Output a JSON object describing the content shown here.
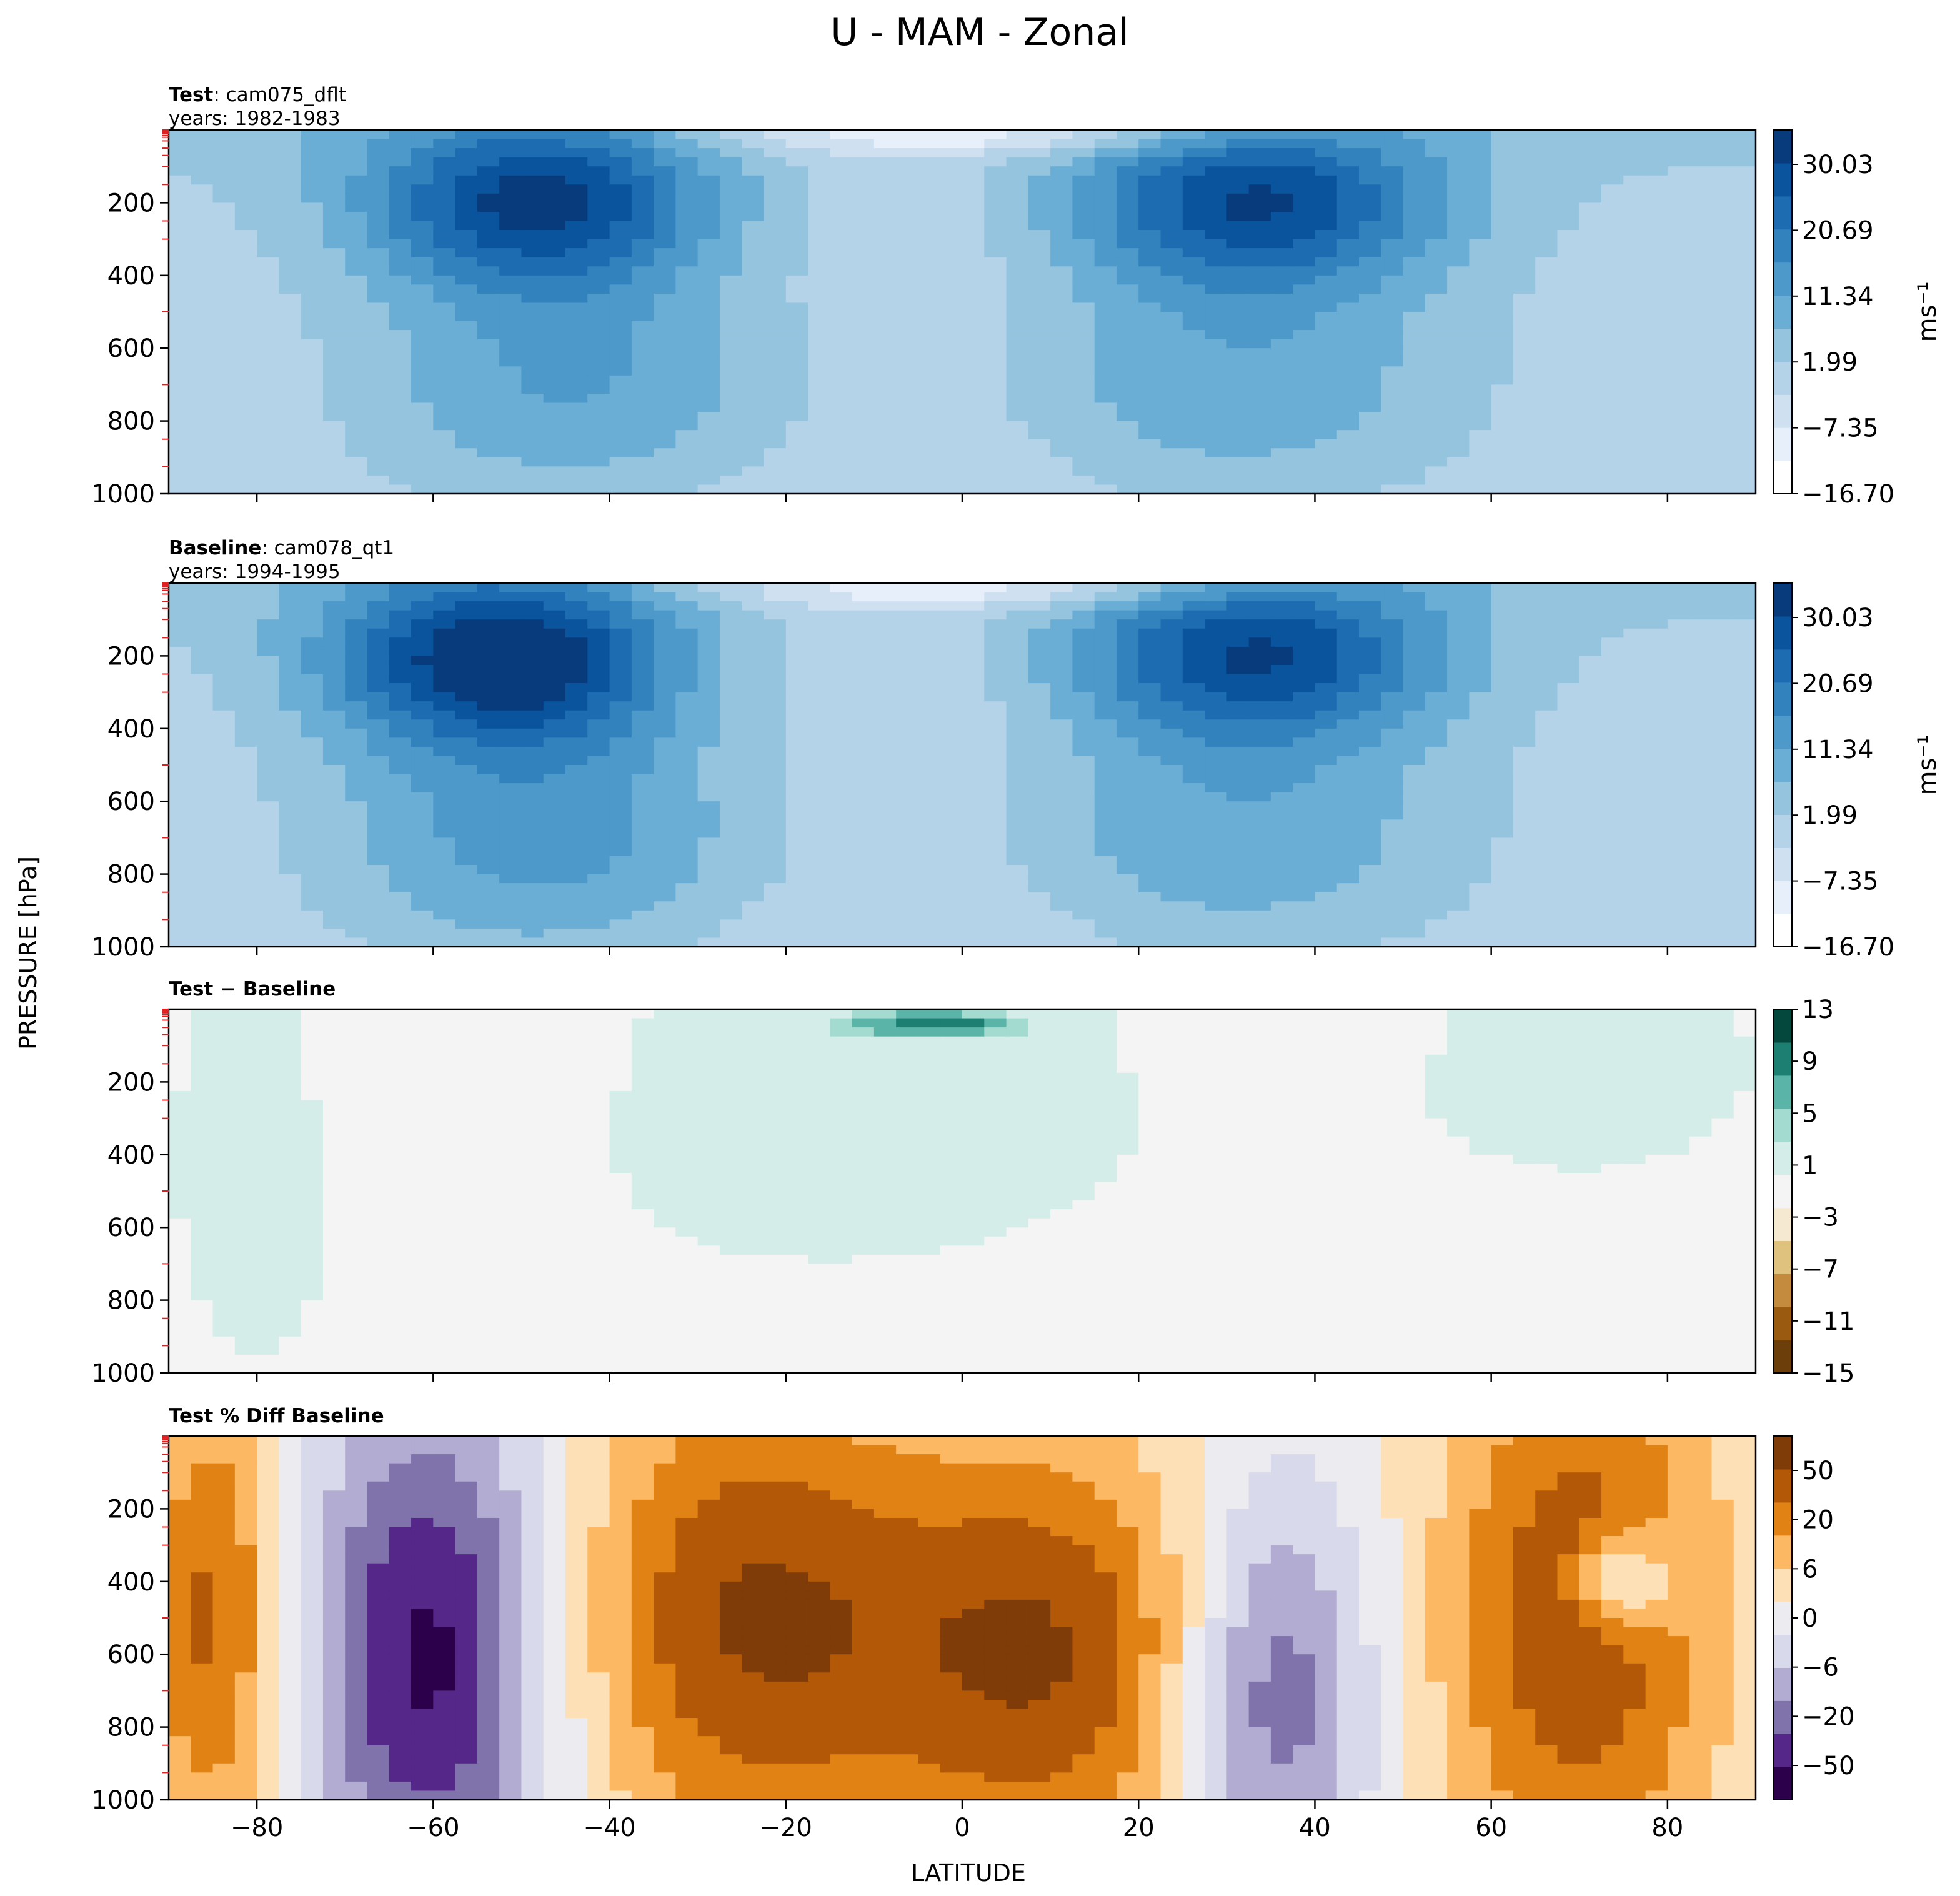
{
  "figure": {
    "title": "U - MAM - Zonal",
    "ylabel": "PRESSURE [hPa]",
    "xlabel": "LATITUDE"
  },
  "chart_data": [
    {
      "type": "heatmap",
      "panel": "test",
      "title_bold": "Test",
      "title_rest": ": cam075_dflt",
      "subtitle": "years: 1982-1983",
      "xlim": [
        -90,
        90
      ],
      "ylim": [
        1000,
        0
      ],
      "x_ticks": [
        -80,
        -60,
        -40,
        -20,
        0,
        20,
        40,
        60,
        80
      ],
      "y_ticks": [
        200,
        400,
        600,
        800,
        1000
      ],
      "colorbar": {
        "label": "ms⁻¹",
        "ticks": [
          "30.03",
          "20.69",
          "11.34",
          "1.99",
          "−7.35",
          "−16.70"
        ],
        "range": [
          -16.7,
          35.0
        ],
        "colors": [
          "#ffffff",
          "#e7f0fa",
          "#cfe0f1",
          "#b4d3e8",
          "#95c4df",
          "#6aaed6",
          "#4c99ca",
          "#3282be",
          "#1d6cb1",
          "#0a549e",
          "#083b7c"
        ]
      },
      "jets": [
        {
          "hemisphere": "south",
          "lat": -48,
          "pressure": 200,
          "speed": 31
        },
        {
          "hemisphere": "north",
          "lat": 33,
          "pressure": 200,
          "speed": 30
        }
      ]
    },
    {
      "type": "heatmap",
      "panel": "baseline",
      "title_bold": "Baseline",
      "title_rest": ": cam078_qt1",
      "subtitle": "years: 1994-1995",
      "xlim": [
        -90,
        90
      ],
      "ylim": [
        1000,
        0
      ],
      "x_ticks": [
        -80,
        -60,
        -40,
        -20,
        0,
        20,
        40,
        60,
        80
      ],
      "y_ticks": [
        200,
        400,
        600,
        800,
        1000
      ],
      "colorbar": {
        "label": "ms⁻¹",
        "ticks": [
          "30.03",
          "20.69",
          "11.34",
          "1.99",
          "−7.35",
          "−16.70"
        ],
        "range": [
          -16.7,
          35.0
        ],
        "colors": [
          "#ffffff",
          "#e7f0fa",
          "#cfe0f1",
          "#b4d3e8",
          "#95c4df",
          "#6aaed6",
          "#4c99ca",
          "#3282be",
          "#1d6cb1",
          "#0a549e",
          "#083b7c"
        ]
      },
      "jets": [
        {
          "hemisphere": "south",
          "lat": -52,
          "pressure": 210,
          "speed": 35
        },
        {
          "hemisphere": "north",
          "lat": 33,
          "pressure": 200,
          "speed": 30
        }
      ]
    },
    {
      "type": "heatmap",
      "panel": "diff",
      "title_bold": "Test − Baseline",
      "xlim": [
        -90,
        90
      ],
      "ylim": [
        1000,
        0
      ],
      "x_ticks": [
        -80,
        -60,
        -40,
        -20,
        0,
        20,
        40,
        60,
        80
      ],
      "y_ticks": [
        200,
        400,
        600,
        800,
        1000
      ],
      "colorbar": {
        "label": "",
        "ticks": [
          "13",
          "9",
          "5",
          "1",
          "−3",
          "−7",
          "−11",
          "−15"
        ],
        "range": [
          -15,
          13
        ],
        "colors": [
          "#6b3e0a",
          "#9a5a0f",
          "#c48a3e",
          "#dfc27d",
          "#f5e9d1",
          "#f3f4f3",
          "#d4ede9",
          "#a3dbd0",
          "#5ab4a8",
          "#1d7f72",
          "#04473d"
        ]
      }
    },
    {
      "type": "heatmap",
      "panel": "percent",
      "title_bold": "Test % Diff Baseline",
      "xlim": [
        -90,
        90
      ],
      "ylim": [
        1000,
        0
      ],
      "x_ticks": [
        -80,
        -60,
        -40,
        -20,
        0,
        20,
        40,
        60,
        80
      ],
      "y_ticks": [
        200,
        400,
        600,
        800,
        1000
      ],
      "colorbar": {
        "label": "",
        "ticks": [
          "50",
          "20",
          "6",
          "0",
          "−6",
          "−20",
          "−50"
        ],
        "colors": [
          "#2d004b",
          "#542788",
          "#8073ac",
          "#b2abd2",
          "#d8daeb",
          "#ecebf0",
          "#fee0b6",
          "#fdb863",
          "#e08214",
          "#b35806",
          "#7f3b08"
        ]
      }
    }
  ]
}
